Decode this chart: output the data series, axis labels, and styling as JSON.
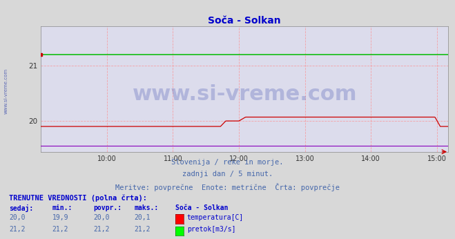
{
  "title": "Soča - Solkan",
  "title_color": "#0000cc",
  "title_fontsize": 10,
  "bg_color": "#d8d8d8",
  "plot_bg_color": "#dcdcec",
  "xlim_hours": [
    9.0,
    15.17
  ],
  "ylim": [
    19.44,
    21.72
  ],
  "yticks": [
    20,
    21
  ],
  "xtick_labels": [
    "10:00",
    "11:00",
    "12:00",
    "13:00",
    "14:00",
    "15:00"
  ],
  "xtick_positions": [
    10.0,
    11.0,
    12.0,
    13.0,
    14.0,
    15.0
  ],
  "grid_color": "#ff8888",
  "grid_style": "--",
  "grid_alpha": 0.7,
  "temp_color": "#cc0000",
  "flow_color": "#00bb00",
  "height_color": "#8800bb",
  "watermark_text": "www.si-vreme.com",
  "watermark_color": "#3344aa",
  "watermark_alpha": 0.25,
  "watermark_fontsize": 22,
  "subtitle1": "Slovenija / reke in morje.",
  "subtitle2": "zadnji dan / 5 minut.",
  "subtitle3": "Meritve: povprečne  Enote: metrične  Črta: povprečje",
  "subtitle_color": "#4466aa",
  "subtitle_fontsize": 7.5,
  "table_header": "TRENUTNE VREDNOSTI (polna črta):",
  "table_col1": "sedaj:",
  "table_col2": "min.:",
  "table_col3": "povpr.:",
  "table_col4": "maks.:",
  "table_col5": "Soča - Solkan",
  "temp_sedaj": "20,0",
  "temp_min": "19,9",
  "temp_povpr": "20,0",
  "temp_maks": "20,1",
  "temp_label": "temperatura[C]",
  "flow_sedaj": "21,2",
  "flow_min": "21,2",
  "flow_povpr": "21,2",
  "flow_maks": "21,2",
  "flow_label": "pretok[m3/s]",
  "n_points": 720,
  "flow_value": 21.2,
  "height_value": 19.55,
  "temp_base": 19.9,
  "rise1_start": 11.72,
  "rise1_end": 11.8,
  "plateau1_val": 20.0,
  "rise2_start": 12.0,
  "rise2_end": 12.1,
  "plateau2_val": 20.07,
  "drop_start": 14.97,
  "drop_end": 15.05
}
